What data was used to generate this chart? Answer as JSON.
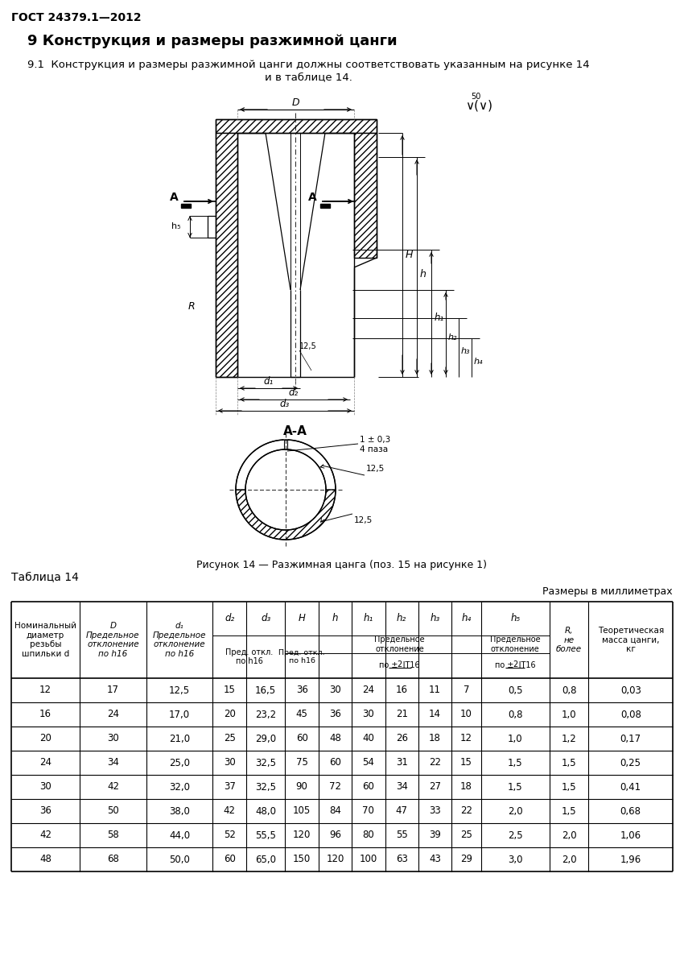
{
  "gost_header": "ГОСТ 24379.1—2012",
  "section_title": "9 Конструкция и размеры разжимной цанги",
  "section_text": "9.1  Конструкция и размеры разжимной цанги должны соответствовать указанным на рисунке 14\nи в таблице 14.",
  "figure_caption": "Рисунок 14 — Разжимная цанга (поз. 15 на рисунке 1)",
  "table_title": "Таблица 14",
  "table_units": "Размеры в миллиметрах",
  "data_rows": [
    [
      "12",
      "17",
      "12,5",
      "15",
      "16,5",
      "36",
      "30",
      "24",
      "16",
      "11",
      "7",
      "0,5",
      "0,8",
      "0,03"
    ],
    [
      "16",
      "24",
      "17,0",
      "20",
      "23,2",
      "45",
      "36",
      "30",
      "21",
      "14",
      "10",
      "0,8",
      "1,0",
      "0,08"
    ],
    [
      "20",
      "30",
      "21,0",
      "25",
      "29,0",
      "60",
      "48",
      "40",
      "26",
      "18",
      "12",
      "1,0",
      "1,2",
      "0,17"
    ],
    [
      "24",
      "34",
      "25,0",
      "30",
      "32,5",
      "75",
      "60",
      "54",
      "31",
      "22",
      "15",
      "1,5",
      "1,5",
      "0,25"
    ],
    [
      "30",
      "42",
      "32,0",
      "37",
      "32,5",
      "90",
      "72",
      "60",
      "34",
      "27",
      "18",
      "1,5",
      "1,5",
      "0,41"
    ],
    [
      "36",
      "50",
      "38,0",
      "42",
      "48,0",
      "105",
      "84",
      "70",
      "47",
      "33",
      "22",
      "2,0",
      "1,5",
      "0,68"
    ],
    [
      "42",
      "58",
      "44,0",
      "52",
      "55,5",
      "120",
      "96",
      "80",
      "55",
      "39",
      "25",
      "2,5",
      "2,0",
      "1,06"
    ],
    [
      "48",
      "68",
      "50,0",
      "60",
      "65,0",
      "150",
      "120",
      "100",
      "63",
      "43",
      "29",
      "3,0",
      "2,0",
      "1,96"
    ]
  ],
  "bg_color": "#ffffff"
}
